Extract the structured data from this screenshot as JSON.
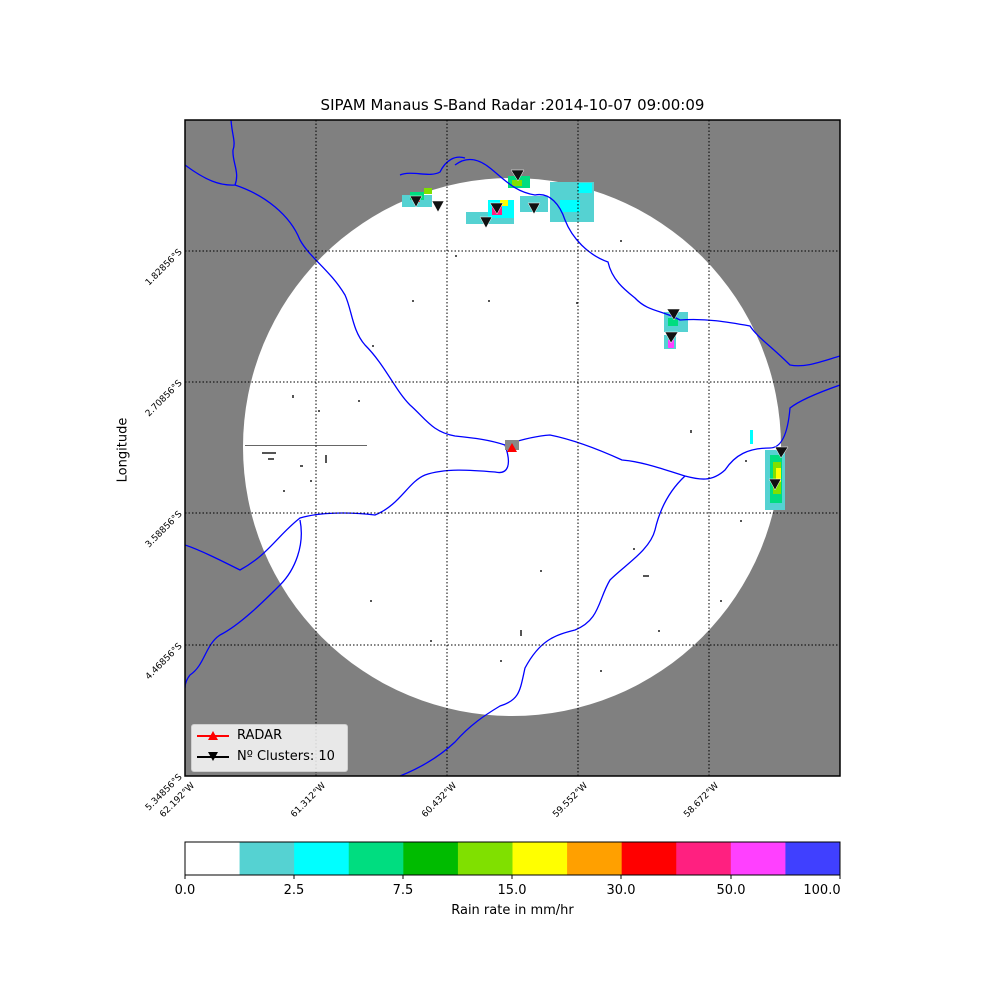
{
  "title": "SIPAM Manaus S-Band Radar :2014-10-07 09:00:09",
  "y_axis_label": "Longitude",
  "lat_ticks": [
    "1.82856°S",
    "2.70856°S",
    "3.58856°S",
    "4.46856°S",
    "5.34856°S"
  ],
  "lon_ticks": [
    "62.192°W",
    "61.312°W",
    "60.432°W",
    "59.552°W",
    "58.672°W"
  ],
  "legend": {
    "radar_label": "RADAR",
    "clusters_label": "Nº Clusters: 10",
    "radar_color": "#ff0000",
    "cluster_color": "#000000"
  },
  "colorbar": {
    "label": "Rain rate in mm/hr",
    "tick_labels": [
      "0.0",
      "2.5",
      "7.5",
      "15.0",
      "30.0",
      "50.0",
      "100.0"
    ],
    "colors": [
      "#ffffff",
      "#55d2d2",
      "#00ffff",
      "#00dd80",
      "#00bb00",
      "#80e000",
      "#ffff00",
      "#ffa000",
      "#ff0000",
      "#ff2080",
      "#ff40ff",
      "#4040ff"
    ]
  },
  "map_colors": {
    "outside_coverage": "#808080",
    "inside_coverage": "#ffffff",
    "rivers": "#0000ff",
    "gridlines": "#000000"
  },
  "cluster_count": 10
}
